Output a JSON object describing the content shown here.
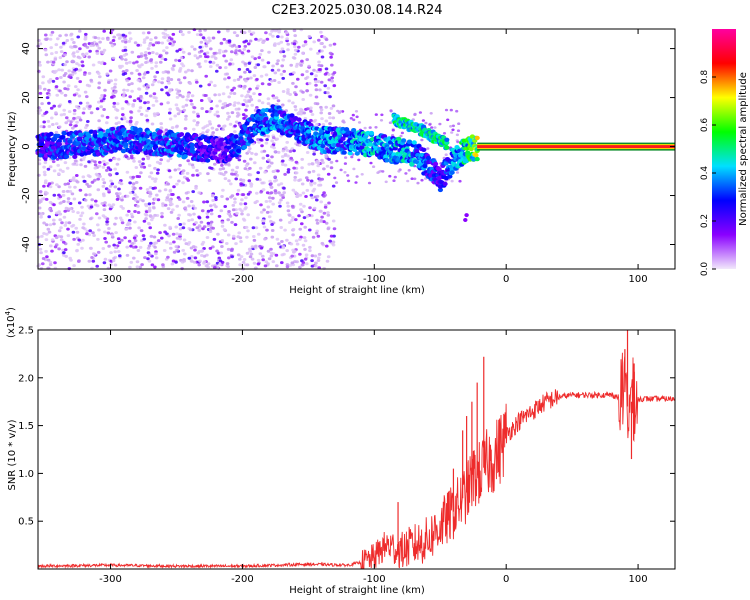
{
  "title": "C2E3.2025.030.08.14.R24",
  "chart_data": [
    {
      "type": "heatmap",
      "xlabel": "Height of straight line (km)",
      "ylabel": "Frequency (Hz)",
      "xlim": [
        -355,
        128
      ],
      "ylim": [
        -50,
        48
      ],
      "xticks": [
        -300,
        -200,
        -100,
        0,
        100
      ],
      "yticks": [
        -40,
        -20,
        0,
        20,
        40
      ],
      "colorbar": {
        "label": "Normalized spectral amplitude",
        "range": [
          0,
          1
        ],
        "ticks": [
          0.0,
          0.2,
          0.4,
          0.6,
          0.8
        ],
        "colors": [
          "#f2e8fb",
          "#8a00ff",
          "#0000ff",
          "#00e0ff",
          "#00ff00",
          "#ffff00",
          "#ff0000",
          "#ff00a0"
        ]
      },
      "noise_band": {
        "x_range": [
          -355,
          -130
        ],
        "density": "high"
      },
      "ridge": {
        "x": [
          -355,
          -320,
          -290,
          -250,
          -215,
          -200,
          -190,
          -175,
          -160,
          -140,
          -120,
          -100,
          -90,
          -80,
          -70,
          -60,
          -50,
          -40,
          -30,
          -20,
          -10,
          0,
          20,
          60,
          80,
          100,
          128
        ],
        "y": [
          0,
          1,
          3,
          1,
          -2,
          3,
          9,
          12,
          7,
          3,
          2,
          1,
          -1,
          -2,
          -3,
          -7,
          -14,
          -5,
          -1,
          0,
          0,
          0,
          0,
          0,
          0,
          0,
          0
        ],
        "amplitude": [
          0.25,
          0.3,
          0.3,
          0.3,
          0.2,
          0.3,
          0.3,
          0.35,
          0.3,
          0.35,
          0.35,
          0.4,
          0.35,
          0.4,
          0.35,
          0.3,
          0.25,
          0.35,
          0.5,
          0.7,
          0.85,
          0.9,
          0.95,
          0.95,
          0.95,
          0.95,
          0.95
        ]
      },
      "secondary_ridge": {
        "x": [
          -85,
          -75,
          -65,
          -55,
          -45
        ],
        "y": [
          11,
          9,
          7,
          4,
          1
        ]
      },
      "isolated_points": [
        {
          "x": -30,
          "y": -28
        },
        {
          "x": -31,
          "y": -30
        }
      ]
    },
    {
      "type": "line",
      "xlabel": "Height of straight line (km)",
      "ylabel": "SNR (10 * v/v)",
      "scale_label": "(x10",
      "scale_exponent": "4",
      "xlim": [
        -355,
        128
      ],
      "ylim": [
        0,
        2.5
      ],
      "xticks": [
        -300,
        -200,
        -100,
        0,
        100
      ],
      "yticks": [
        0.5,
        1.0,
        1.5,
        2.0,
        2.5
      ],
      "line_color": "#ee2b2b",
      "series": [
        {
          "x": [
            -355,
            -300,
            -250,
            -200,
            -150,
            -120,
            -110,
            -100,
            -95,
            -90,
            -85,
            -80,
            -75,
            -70,
            -60,
            -50,
            -40,
            -30,
            -25,
            -20,
            -15,
            -10,
            -5,
            0,
            10,
            20,
            30,
            40,
            50,
            60,
            70,
            80,
            85,
            90,
            92,
            95,
            98,
            100,
            110,
            120,
            128
          ],
          "y": [
            0.03,
            0.04,
            0.03,
            0.03,
            0.05,
            0.04,
            0.07,
            0.12,
            0.2,
            0.25,
            0.22,
            0.18,
            0.22,
            0.25,
            0.3,
            0.45,
            0.6,
            0.8,
            0.95,
            1.0,
            1.1,
            1.15,
            1.25,
            1.4,
            1.55,
            1.65,
            1.75,
            1.8,
            1.82,
            1.82,
            1.82,
            1.82,
            1.8,
            1.85,
            1.7,
            1.75,
            1.8,
            1.78,
            1.78,
            1.78,
            1.78
          ]
        }
      ],
      "spikes": [
        {
          "x": -82,
          "y": 0.7
        },
        {
          "x": -40,
          "y": 1.05
        },
        {
          "x": -33,
          "y": 1.45
        },
        {
          "x": -30,
          "y": 1.6
        },
        {
          "x": -26,
          "y": 1.75
        },
        {
          "x": -22,
          "y": 1.95
        },
        {
          "x": -17,
          "y": 2.22
        },
        {
          "x": -12,
          "y": 1.3
        },
        {
          "x": 92,
          "y": 2.5
        },
        {
          "x": 95,
          "y": 1.15
        },
        {
          "x": 90,
          "y": 2.3
        },
        {
          "x": 97,
          "y": 2.15
        }
      ]
    }
  ]
}
